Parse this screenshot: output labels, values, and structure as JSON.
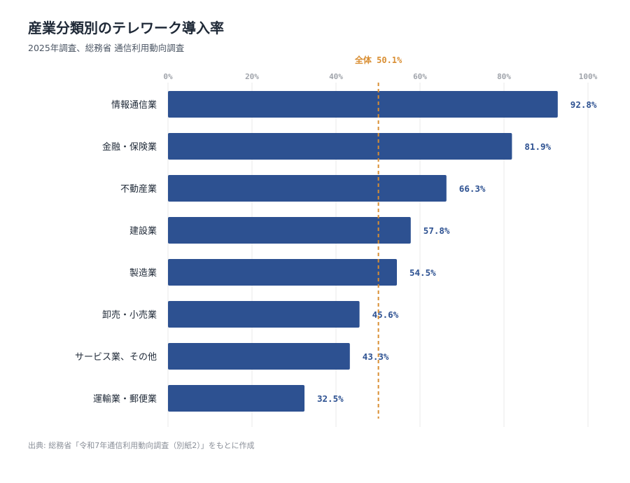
{
  "header": {
    "title": "産業分類別のテレワーク導入率",
    "subtitle": "2025年調査、総務省 通信利用動向調査"
  },
  "footer": {
    "source": "出典: 総務省「令和7年通信利用動向調査（別紙2）」をもとに作成"
  },
  "colors": {
    "bar": "#2d5191",
    "reference_line": "#d98e32",
    "grid": "#e8e8e8",
    "tick_text": "#a0a4ab",
    "label_text": "#1f2937"
  },
  "chart_data": {
    "type": "bar",
    "orientation": "horizontal",
    "categories": [
      "情報通信業",
      "金融・保険業",
      "不動産業",
      "建設業",
      "製造業",
      "卸売・小売業",
      "サービス業、その他",
      "運輸業・郵便業"
    ],
    "values": [
      92.8,
      81.9,
      66.3,
      57.8,
      54.5,
      45.6,
      43.3,
      32.5
    ],
    "value_labels": [
      "92.8%",
      "81.9%",
      "66.3%",
      "57.8%",
      "54.5%",
      "45.6%",
      "43.3%",
      "32.5%"
    ],
    "xlim": [
      0,
      100
    ],
    "x_ticks": [
      0,
      20,
      40,
      60,
      80,
      100
    ],
    "x_tick_labels": [
      "0%",
      "20%",
      "40%",
      "60%",
      "80%",
      "100%"
    ],
    "reference": {
      "value": 50.1,
      "label": "全体 50.1%"
    },
    "grid": true
  }
}
